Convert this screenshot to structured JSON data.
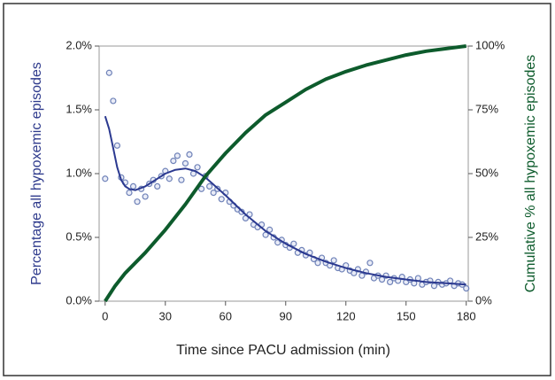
{
  "chart_data": {
    "type": "line",
    "xlabel": "Time since PACU admission (min)",
    "ylabel": "Percentage all hypoxemic episodes",
    "y2label": "Cumulative % all hypoxemic episodes",
    "xlim": [
      -3,
      181
    ],
    "xticks": [
      0,
      30,
      60,
      90,
      120,
      150,
      180
    ],
    "ylim": [
      0,
      2
    ],
    "yticks": [
      {
        "value": 0,
        "label": "0.0%"
      },
      {
        "value": 0.5,
        "label": "0.5%"
      },
      {
        "value": 1,
        "label": "1.0%"
      },
      {
        "value": 1.5,
        "label": "1.5%"
      },
      {
        "value": 2,
        "label": "2.0%"
      }
    ],
    "y2lim": [
      0,
      100
    ],
    "y2ticks": [
      {
        "value": 0,
        "label": "0%"
      },
      {
        "value": 25,
        "label": "25%"
      },
      {
        "value": 50,
        "label": "50%"
      },
      {
        "value": 75,
        "label": "75%"
      },
      {
        "value": 100,
        "label": "100%"
      }
    ],
    "ylabel_color": "#2e3a8c",
    "y2label_color": "#0d5b2c",
    "series": [
      {
        "type": "scatter",
        "color": "#6f82b8",
        "axis": "y",
        "x": [
          0,
          2,
          4,
          6,
          8,
          10,
          12,
          14,
          16,
          18,
          20,
          22,
          24,
          26,
          28,
          30,
          32,
          34,
          36,
          38,
          40,
          42,
          44,
          46,
          48,
          50,
          52,
          54,
          56,
          58,
          60,
          62,
          64,
          66,
          68,
          70,
          72,
          74,
          76,
          78,
          80,
          82,
          84,
          86,
          88,
          90,
          92,
          94,
          96,
          98,
          100,
          102,
          104,
          106,
          108,
          110,
          112,
          114,
          116,
          118,
          120,
          122,
          124,
          126,
          128,
          130,
          132,
          134,
          136,
          138,
          140,
          142,
          144,
          146,
          148,
          150,
          152,
          154,
          156,
          158,
          160,
          162,
          164,
          166,
          168,
          170,
          172,
          174,
          176,
          178,
          180
        ],
        "values": [
          0.96,
          1.79,
          1.57,
          1.22,
          0.97,
          0.93,
          0.85,
          0.9,
          0.78,
          0.88,
          0.82,
          0.92,
          0.95,
          0.9,
          0.98,
          1.02,
          0.96,
          1.1,
          1.14,
          0.95,
          1.08,
          1.15,
          1.0,
          1.05,
          0.88,
          0.98,
          0.9,
          0.85,
          0.88,
          0.8,
          0.85,
          0.78,
          0.75,
          0.72,
          0.7,
          0.65,
          0.68,
          0.6,
          0.58,
          0.6,
          0.52,
          0.56,
          0.5,
          0.46,
          0.48,
          0.44,
          0.42,
          0.45,
          0.38,
          0.4,
          0.36,
          0.38,
          0.33,
          0.3,
          0.34,
          0.3,
          0.28,
          0.32,
          0.26,
          0.25,
          0.28,
          0.24,
          0.22,
          0.25,
          0.2,
          0.23,
          0.3,
          0.18,
          0.2,
          0.17,
          0.2,
          0.15,
          0.18,
          0.16,
          0.19,
          0.15,
          0.17,
          0.14,
          0.18,
          0.13,
          0.15,
          0.16,
          0.12,
          0.15,
          0.13,
          0.14,
          0.16,
          0.12,
          0.14,
          0.13,
          0.1
        ]
      },
      {
        "type": "line",
        "color": "#2b3990",
        "axis": "y",
        "x": [
          0,
          2,
          4,
          6,
          8,
          10,
          12,
          15,
          20,
          25,
          30,
          35,
          40,
          45,
          50,
          55,
          60,
          70,
          80,
          90,
          100,
          110,
          120,
          130,
          140,
          150,
          160,
          170,
          180
        ],
        "values": [
          1.45,
          1.35,
          1.2,
          1.05,
          0.95,
          0.9,
          0.88,
          0.87,
          0.9,
          0.95,
          1.0,
          1.03,
          1.04,
          1.02,
          0.97,
          0.9,
          0.83,
          0.68,
          0.55,
          0.45,
          0.37,
          0.31,
          0.26,
          0.22,
          0.19,
          0.17,
          0.15,
          0.14,
          0.13
        ]
      },
      {
        "type": "line",
        "color": "#0d5b2c",
        "axis": "y2",
        "x": [
          0,
          5,
          10,
          20,
          30,
          40,
          50,
          60,
          70,
          80,
          90,
          100,
          110,
          120,
          130,
          140,
          150,
          160,
          170,
          180
        ],
        "values": [
          0,
          6,
          11,
          19,
          28,
          38,
          49,
          58,
          66,
          73,
          78,
          83,
          87,
          90,
          92.5,
          94.5,
          96.5,
          98,
          99,
          100
        ]
      }
    ]
  }
}
